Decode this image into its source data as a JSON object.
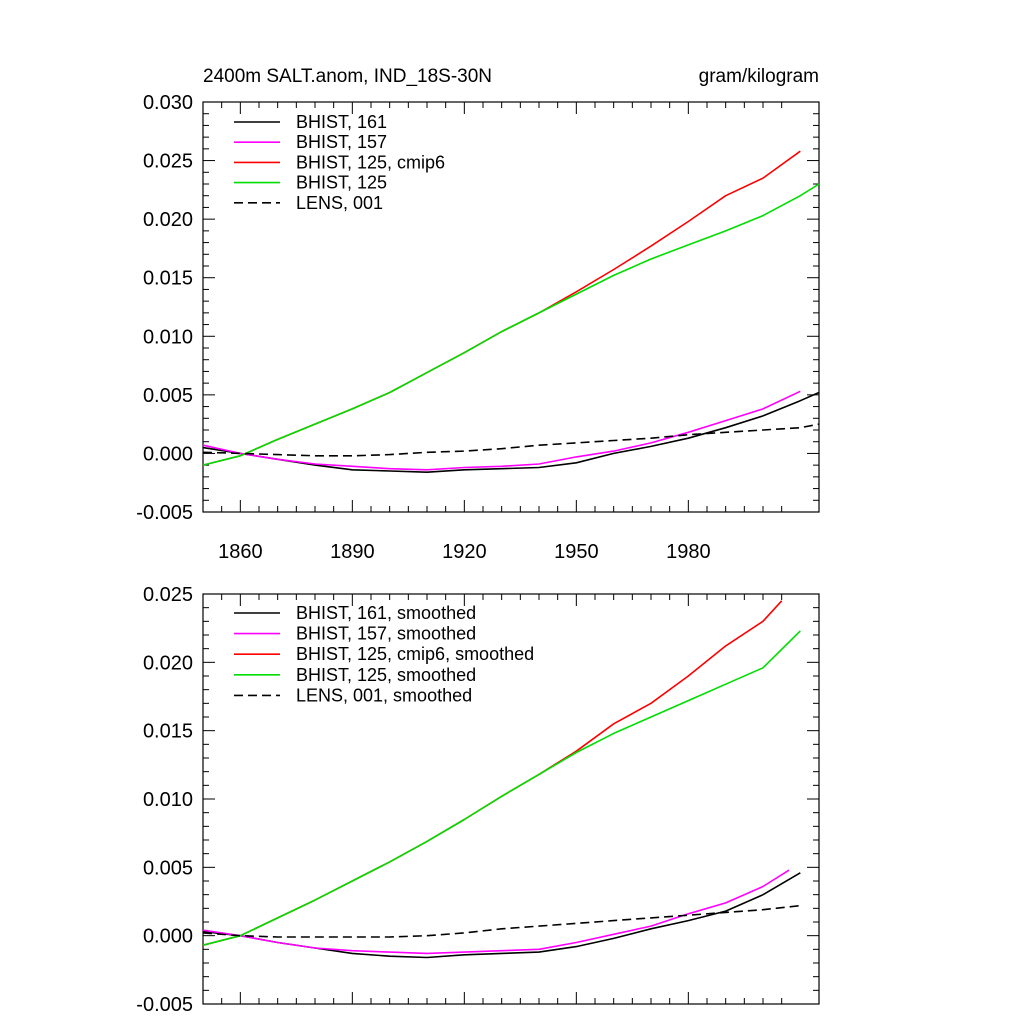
{
  "chart_data": [
    {
      "type": "line",
      "title": "2400m SALT.anom, IND_18S-30N",
      "units": "gram/kilogram",
      "xlim": [
        1850,
        2015
      ],
      "ylim": [
        -0.005,
        0.03
      ],
      "xticks": [
        1860,
        1890,
        1920,
        1950,
        1980
      ],
      "xtick_labels": [
        "1860",
        "1890",
        "1920",
        "1950",
        "1980"
      ],
      "yticks": [
        -0.005,
        0.0,
        0.005,
        0.01,
        0.015,
        0.02,
        0.025,
        0.03
      ],
      "ytick_labels": [
        "-0.005",
        "0.000",
        "0.005",
        "0.010",
        "0.015",
        "0.020",
        "0.025",
        "0.030"
      ],
      "legend_position": "top-left",
      "grid": false,
      "series": [
        {
          "name": "BHIST, 161",
          "color": "#000000",
          "dash": "solid",
          "x": [
            1850,
            1860,
            1870,
            1880,
            1890,
            1900,
            1910,
            1920,
            1930,
            1940,
            1950,
            1960,
            1970,
            1980,
            1990,
            2000,
            2010,
            2015
          ],
          "y": [
            0.0005,
            0.0,
            -0.0005,
            -0.001,
            -0.0014,
            -0.0015,
            -0.0016,
            -0.0014,
            -0.0013,
            -0.0012,
            -0.0008,
            0.0,
            0.0006,
            0.0013,
            0.0022,
            0.0032,
            0.0045,
            0.0052
          ]
        },
        {
          "name": "BHIST, 157",
          "color": "#ff00ff",
          "dash": "solid",
          "x": [
            1850,
            1860,
            1870,
            1880,
            1890,
            1900,
            1910,
            1920,
            1930,
            1940,
            1950,
            1960,
            1970,
            1980,
            1990,
            2000,
            2010
          ],
          "y": [
            0.0007,
            0.0,
            -0.0005,
            -0.0009,
            -0.0011,
            -0.0013,
            -0.0014,
            -0.0012,
            -0.0011,
            -0.0009,
            -0.0003,
            0.0002,
            0.0009,
            0.0018,
            0.0028,
            0.0038,
            0.0053
          ]
        },
        {
          "name": "BHIST, 125, cmip6",
          "color": "#ff0000",
          "dash": "solid",
          "x": [
            1850,
            1860,
            1870,
            1880,
            1890,
            1900,
            1910,
            1920,
            1930,
            1940,
            1950,
            1960,
            1970,
            1980,
            1990,
            2000,
            2010
          ],
          "y": [
            -0.001,
            -0.0002,
            0.0012,
            0.0025,
            0.0038,
            0.0052,
            0.0069,
            0.0086,
            0.0104,
            0.012,
            0.0138,
            0.0157,
            0.0177,
            0.0198,
            0.022,
            0.0235,
            0.0258
          ]
        },
        {
          "name": "BHIST, 125",
          "color": "#00dd00",
          "dash": "solid",
          "x": [
            1850,
            1860,
            1870,
            1880,
            1890,
            1900,
            1910,
            1920,
            1930,
            1940,
            1950,
            1960,
            1970,
            1980,
            1990,
            2000,
            2010,
            2015
          ],
          "y": [
            -0.001,
            -0.0002,
            0.0012,
            0.0025,
            0.0038,
            0.0052,
            0.0069,
            0.0086,
            0.0104,
            0.012,
            0.0136,
            0.0152,
            0.0166,
            0.0178,
            0.019,
            0.0203,
            0.022,
            0.023
          ]
        },
        {
          "name": "LENS, 001",
          "color": "#000000",
          "dash": "dashed",
          "x": [
            1850,
            1860,
            1870,
            1880,
            1890,
            1900,
            1910,
            1920,
            1930,
            1940,
            1950,
            1960,
            1970,
            1980,
            1990,
            2000,
            2010,
            2015
          ],
          "y": [
            0.0001,
            0.0,
            -0.0001,
            -0.0002,
            -0.0002,
            -0.0001,
            0.0001,
            0.0002,
            0.0004,
            0.0007,
            0.0009,
            0.0011,
            0.0013,
            0.0016,
            0.0018,
            0.002,
            0.0022,
            0.0025
          ]
        }
      ]
    },
    {
      "type": "line",
      "xlim": [
        1850,
        2015
      ],
      "ylim": [
        -0.005,
        0.025
      ],
      "xticks": [
        1860,
        1890,
        1920,
        1950,
        1980
      ],
      "xtick_labels": [],
      "yticks": [
        -0.005,
        0.0,
        0.005,
        0.01,
        0.015,
        0.02,
        0.025
      ],
      "ytick_labels": [
        "-0.005",
        "0.000",
        "0.005",
        "0.010",
        "0.015",
        "0.020",
        "0.025"
      ],
      "legend_position": "top-left",
      "grid": false,
      "series": [
        {
          "name": "BHIST, 161, smoothed",
          "color": "#000000",
          "dash": "solid",
          "x": [
            1850,
            1860,
            1870,
            1880,
            1890,
            1900,
            1910,
            1920,
            1930,
            1940,
            1950,
            1960,
            1970,
            1980,
            1990,
            2000,
            2010
          ],
          "y": [
            0.0003,
            0.0,
            -0.0005,
            -0.0009,
            -0.0013,
            -0.0015,
            -0.0016,
            -0.0014,
            -0.0013,
            -0.0012,
            -0.0008,
            -0.0002,
            0.0005,
            0.0011,
            0.0018,
            0.003,
            0.0046
          ]
        },
        {
          "name": "BHIST, 157, smoothed",
          "color": "#ff00ff",
          "dash": "solid",
          "x": [
            1850,
            1860,
            1870,
            1880,
            1890,
            1900,
            1910,
            1920,
            1930,
            1940,
            1950,
            1960,
            1970,
            1980,
            1990,
            2000,
            2007
          ],
          "y": [
            0.0004,
            0.0,
            -0.0005,
            -0.0009,
            -0.0011,
            -0.0012,
            -0.0013,
            -0.0012,
            -0.0011,
            -0.001,
            -0.0005,
            0.0001,
            0.0007,
            0.0016,
            0.0024,
            0.0036,
            0.0048
          ]
        },
        {
          "name": "BHIST, 125, cmip6, smoothed",
          "color": "#ff0000",
          "dash": "solid",
          "x": [
            1850,
            1860,
            1870,
            1880,
            1890,
            1900,
            1910,
            1920,
            1930,
            1940,
            1950,
            1960,
            1970,
            1980,
            1990,
            2000,
            2005
          ],
          "y": [
            -0.0007,
            0.0,
            0.0013,
            0.0026,
            0.004,
            0.0054,
            0.0069,
            0.0085,
            0.0102,
            0.0118,
            0.0135,
            0.0155,
            0.017,
            0.019,
            0.0212,
            0.023,
            0.0245
          ]
        },
        {
          "name": "BHIST, 125, smoothed",
          "color": "#00dd00",
          "dash": "solid",
          "x": [
            1850,
            1860,
            1870,
            1880,
            1890,
            1900,
            1910,
            1920,
            1930,
            1940,
            1950,
            1960,
            1970,
            1980,
            1990,
            2000,
            2010
          ],
          "y": [
            -0.0007,
            0.0,
            0.0013,
            0.0026,
            0.004,
            0.0054,
            0.0069,
            0.0085,
            0.0102,
            0.0118,
            0.0134,
            0.0148,
            0.016,
            0.0172,
            0.0184,
            0.0196,
            0.0223
          ]
        },
        {
          "name": "LENS, 001, smoothed",
          "color": "#000000",
          "dash": "dashed",
          "x": [
            1850,
            1860,
            1870,
            1880,
            1890,
            1900,
            1910,
            1920,
            1930,
            1940,
            1950,
            1960,
            1970,
            1980,
            1990,
            2000,
            2010
          ],
          "y": [
            0.0002,
            0.0,
            -0.0001,
            -0.0001,
            -0.0001,
            -0.0001,
            0.0,
            0.0002,
            0.0005,
            0.0007,
            0.0009,
            0.0011,
            0.0013,
            0.0015,
            0.0017,
            0.0019,
            0.0022
          ]
        }
      ]
    }
  ]
}
